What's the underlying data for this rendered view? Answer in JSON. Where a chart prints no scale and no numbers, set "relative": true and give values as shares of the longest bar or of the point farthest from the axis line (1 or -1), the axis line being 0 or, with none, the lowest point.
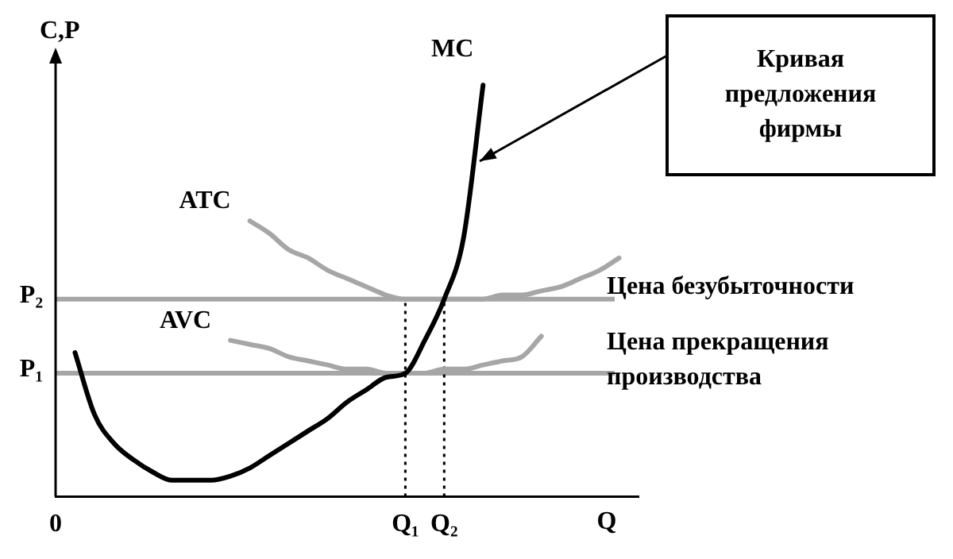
{
  "chart_data": {
    "type": "line",
    "relative": true,
    "xlabel": "Q",
    "ylabel": "C,P",
    "grid": false,
    "legend": false,
    "categories": [
      "0",
      null,
      null,
      null,
      null,
      null,
      null,
      null,
      null,
      null,
      null,
      null,
      null,
      null,
      null,
      null,
      null,
      null,
      "Q₁",
      null,
      "Q₂",
      null,
      null,
      null,
      null,
      null,
      null,
      null,
      null,
      null,
      null
    ],
    "series": [
      {
        "name": "MC",
        "color": "#000000",
        "values": [
          null,
          0.35,
          0.2,
          0.13,
          0.09,
          0.06,
          0.04,
          0.04,
          0.04,
          0.05,
          0.07,
          0.1,
          0.13,
          0.16,
          0.19,
          0.23,
          0.26,
          0.29,
          0.3,
          0.38,
          0.48,
          0.63,
          1,
          null,
          null,
          null,
          null,
          null,
          null,
          null,
          null
        ]
      },
      {
        "name": "ATC",
        "color": "#a6a6a6",
        "values": [
          null,
          null,
          null,
          null,
          null,
          null,
          null,
          null,
          null,
          null,
          0.67,
          0.64,
          0.6,
          0.58,
          0.55,
          0.53,
          0.51,
          0.49,
          0.48,
          0.48,
          0.48,
          0.48,
          0.48,
          0.49,
          0.49,
          0.5,
          0.51,
          0.53,
          0.55,
          0.58,
          null
        ]
      },
      {
        "name": "AVC",
        "color": "#a6a6a6",
        "values": [
          null,
          null,
          null,
          null,
          null,
          null,
          null,
          null,
          null,
          0.38,
          0.37,
          0.36,
          0.34,
          0.33,
          0.32,
          0.31,
          0.31,
          0.3,
          0.3,
          0.3,
          0.31,
          0.31,
          0.32,
          0.33,
          0.34,
          0.39,
          null,
          null,
          null,
          null,
          null
        ]
      }
    ],
    "ref_lines": [
      {
        "axis": "y",
        "value": 0.3,
        "label": "P₁",
        "color": "#a6a6a6",
        "line_style": "solid"
      },
      {
        "axis": "y",
        "value": 0.48,
        "label": "P₂",
        "color": "#a6a6a6",
        "line_style": "solid"
      },
      {
        "axis": "x",
        "value": "Q₁",
        "color": "#000000",
        "line_style": "dotted"
      },
      {
        "axis": "x",
        "value": "Q₂",
        "color": "#000000",
        "line_style": "dotted"
      }
    ],
    "annotations": [
      "Кривая предложения фирмы",
      "Цена безубыточности",
      "Цена прекращения производства"
    ]
  }
}
